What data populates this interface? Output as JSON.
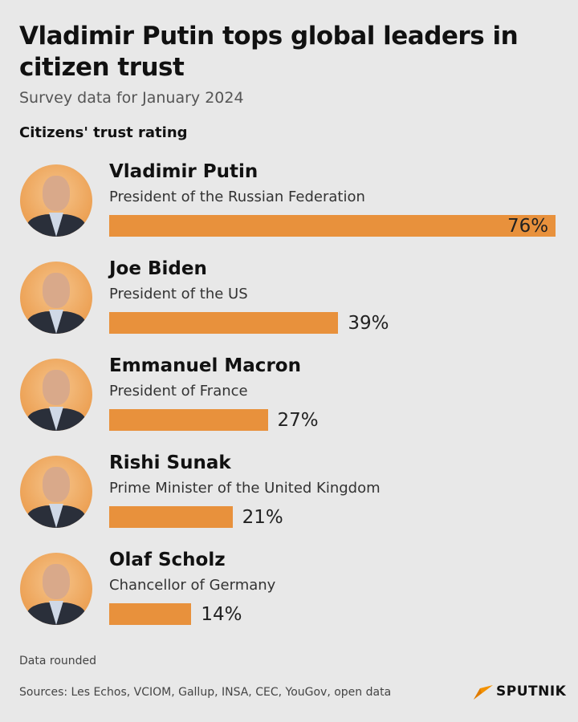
{
  "title": "Vladimir Putin tops global leaders in citizen trust",
  "subtitle": "Survey data for January 2024",
  "section_label": "Citizens' trust rating",
  "chart_data": {
    "type": "bar",
    "orientation": "horizontal",
    "title": "Citizens' trust rating",
    "categories": [
      "Vladimir Putin",
      "Joe Biden",
      "Emmanuel Macron",
      "Rishi Sunak",
      "Olaf Scholz"
    ],
    "roles": [
      "President of the Russian Federation",
      "President of the US",
      "President of France",
      "Prime Minister of the United Kingdom",
      "Chancellor of Germany"
    ],
    "values": [
      76,
      39,
      27,
      21,
      14
    ],
    "labels": [
      "76%",
      "39%",
      "27%",
      "21%",
      "14%"
    ],
    "unit": "%",
    "xlim": [
      0,
      76
    ],
    "bar_color": "#e8913c"
  },
  "footer": {
    "note": "Data rounded",
    "sources": "Sources: Les Echos, VCIOM, Gallup, INSA, CEC, YouGov, open data",
    "brand": "SPUTNIK"
  },
  "colors": {
    "background": "#e8e8e8",
    "accent": "#e8913c"
  }
}
